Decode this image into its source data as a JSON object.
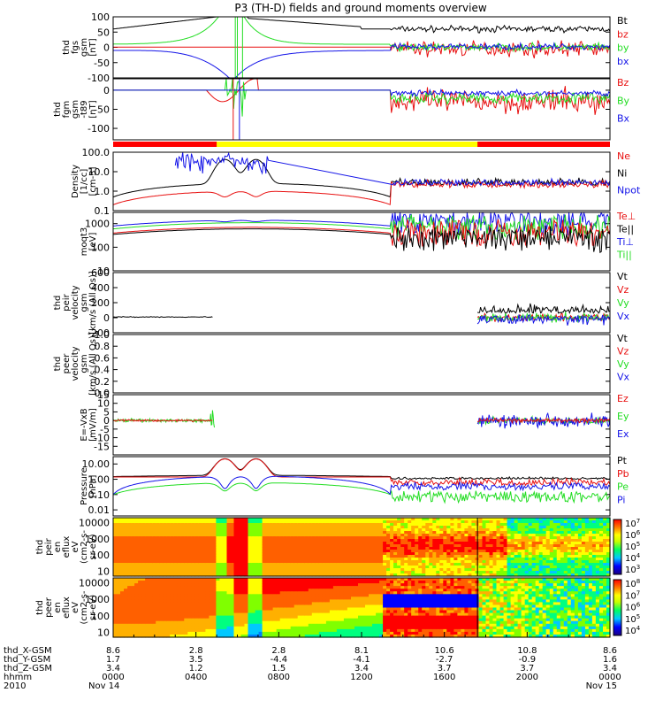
{
  "title": "P3 (TH-D) fields and ground moments overview",
  "colors": {
    "black": "#000000",
    "red": "#e81010",
    "green": "#22dd22",
    "blue": "#1414e8",
    "yellow": "#ffff00"
  },
  "chart_data": {
    "type": "line",
    "x_range": [
      "2010-11-14 00:00",
      "2010-11-15 00:00"
    ],
    "panels": [
      {
        "id": "fgs",
        "ylabel": [
          "thd",
          "fgs",
          "gsm",
          "[nT]"
        ],
        "ylim": [
          -100,
          100
        ],
        "ticks": [
          "100",
          "50",
          "0",
          "-50",
          "-100"
        ],
        "tickvals": [
          100,
          50,
          0,
          -50,
          -100
        ],
        "legend": [
          {
            "name": "Bt",
            "color": "black"
          },
          {
            "name": "bz",
            "color": "red"
          },
          {
            "name": "by",
            "color": "green"
          },
          {
            "name": "bx",
            "color": "blue"
          }
        ]
      },
      {
        "id": "fgm",
        "ylabel": [
          "thd",
          "fgm",
          "gsm",
          "-t89",
          "[nT]"
        ],
        "ylim": [
          -130,
          30
        ],
        "ticks": [
          "0",
          "-50",
          "-100"
        ],
        "tickvals": [
          0,
          -50,
          -100
        ],
        "legend": [
          {
            "name": "Bz",
            "color": "red"
          },
          {
            "name": "By",
            "color": "green"
          },
          {
            "name": "Bx",
            "color": "blue"
          }
        ]
      },
      {
        "id": "density",
        "ylabel": [
          "Density",
          "[1/cc]",
          "[cm-3]"
        ],
        "log": true,
        "ylim": [
          0.1,
          100
        ],
        "ticks": [
          "100.0",
          "10.0",
          "1.0",
          "0.1"
        ],
        "tickvals": [
          100,
          10,
          1,
          0.1
        ],
        "legend": [
          {
            "name": "Ne",
            "color": "red"
          },
          {
            "name": "Ni",
            "color": "black"
          },
          {
            "name": "Npot",
            "color": "blue"
          }
        ]
      },
      {
        "id": "temp",
        "ylabel": [
          "moqt3",
          "[eV]"
        ],
        "log": true,
        "ylim": [
          10,
          3000
        ],
        "ticks": [
          "1000",
          "100",
          "10"
        ],
        "tickvals": [
          1000,
          100,
          10
        ],
        "legend": [
          {
            "name": "Te⊥",
            "color": "red"
          },
          {
            "name": "Te||",
            "color": "black"
          },
          {
            "name": "Ti⊥",
            "color": "blue"
          },
          {
            "name": "Ti||",
            "color": "green"
          }
        ]
      },
      {
        "id": "peir",
        "ylabel": [
          "thd",
          "peir",
          "velocity",
          "gsm",
          "[km/s (All Qs)]"
        ],
        "ylim": [
          -200,
          600
        ],
        "ticks": [
          "600",
          "400",
          "200",
          "0",
          "-200"
        ],
        "tickvals": [
          600,
          400,
          200,
          0,
          -200
        ],
        "legend": [
          {
            "name": "Vt",
            "color": "black"
          },
          {
            "name": "Vz",
            "color": "red"
          },
          {
            "name": "Vy",
            "color": "green"
          },
          {
            "name": "Vx",
            "color": "blue"
          }
        ]
      },
      {
        "id": "peer",
        "ylabel": [
          "thd",
          "peer",
          "velocity",
          "gsm",
          "[km/s (All Qs)]"
        ],
        "ylim": [
          0,
          1
        ],
        "ticks": [
          "1.0",
          "0.8",
          "0.6",
          "0.4",
          "0.2",
          "0.0"
        ],
        "tickvals": [
          1,
          0.8,
          0.6,
          0.4,
          0.2,
          0
        ],
        "legend": [
          {
            "name": "Vt",
            "color": "black"
          },
          {
            "name": "Vz",
            "color": "red"
          },
          {
            "name": "Vy",
            "color": "green"
          },
          {
            "name": "Vx",
            "color": "blue"
          }
        ]
      },
      {
        "id": "efield",
        "ylabel": [
          "E=-VxB",
          "[mV/m]"
        ],
        "ylim": [
          -20,
          15
        ],
        "ticks": [
          "15",
          "10",
          "5",
          "0",
          "-5",
          "-10",
          "-15"
        ],
        "tickvals": [
          15,
          10,
          5,
          0,
          -5,
          -10,
          -15
        ],
        "legend": [
          {
            "name": "Ez",
            "color": "red"
          },
          {
            "name": "Ey",
            "color": "green"
          },
          {
            "name": "Ex",
            "color": "blue"
          }
        ]
      },
      {
        "id": "pressure",
        "ylabel": [
          "Pressure",
          "[nPa]"
        ],
        "log": true,
        "ylim": [
          0.004,
          30
        ],
        "ticks": [
          "10.00",
          "1.00",
          "0.10",
          "0.01"
        ],
        "tickvals": [
          10,
          1,
          0.1,
          0.01
        ],
        "legend": [
          {
            "name": "Pt",
            "color": "black"
          },
          {
            "name": "Pb",
            "color": "red"
          },
          {
            "name": "Pe",
            "color": "green"
          },
          {
            "name": "Pi",
            "color": "blue"
          }
        ]
      },
      {
        "id": "ion_spec",
        "type": "heatmap",
        "ylabel": [
          "thd",
          "peir",
          "en",
          "eflux",
          "eV",
          "(cm2-s-",
          "sr-eV)"
        ],
        "log": true,
        "ylim": [
          5,
          20000
        ],
        "ticks": [
          "10000",
          "1000",
          "100",
          "10"
        ],
        "tickvals": [
          10000,
          1000,
          100,
          10
        ],
        "colorbar": {
          "ticks": [
            [
              "10",
              "7"
            ],
            [
              "10",
              "6"
            ],
            [
              "10",
              "5"
            ],
            [
              "10",
              "4"
            ],
            [
              "10",
              "3"
            ]
          ],
          "range_exp": [
            3,
            7
          ]
        }
      },
      {
        "id": "elec_spec",
        "type": "heatmap",
        "ylabel": [
          "thd",
          "peer",
          "en",
          "eflux",
          "eV",
          "(cm2-s-",
          "sr-eV)"
        ],
        "log": true,
        "ylim": [
          5,
          20000
        ],
        "ticks": [
          "10000",
          "1000",
          "100",
          "10"
        ],
        "tickvals": [
          10000,
          1000,
          100,
          10
        ],
        "colorbar": {
          "ticks": [
            [
              "10",
              "8"
            ],
            [
              "10",
              "7"
            ],
            [
              "10",
              "6"
            ],
            [
              "10",
              "5"
            ],
            [
              "10",
              "4"
            ]
          ],
          "range_exp": [
            4,
            8
          ]
        }
      }
    ],
    "x_axis": {
      "row_labels": [
        "thd_X-GSM",
        "thd_Y-GSM",
        "thd_Z-GSM",
        "hhmm",
        "2010"
      ],
      "columns": [
        {
          "hour": 0,
          "vals": [
            "8.6",
            "1.7",
            "3.4",
            "0000",
            "Nov 14"
          ]
        },
        {
          "hour": 4,
          "vals": [
            "2.8",
            "3.5",
            "1.2",
            "0400",
            ""
          ]
        },
        {
          "hour": 8,
          "vals": [
            "2.8",
            "-4.4",
            "1.5",
            "0800",
            ""
          ]
        },
        {
          "hour": 12,
          "vals": [
            "8.1",
            "-4.1",
            "3.4",
            "1200",
            ""
          ]
        },
        {
          "hour": 16,
          "vals": [
            "10.6",
            "-2.7",
            "3.7",
            "1600",
            ""
          ]
        },
        {
          "hour": 20,
          "vals": [
            "10.8",
            "-0.9",
            "3.7",
            "2000",
            ""
          ]
        },
        {
          "hour": 24,
          "vals": [
            "8.6",
            "1.6",
            "3.4",
            "0000",
            "Nov 15"
          ]
        }
      ]
    }
  }
}
